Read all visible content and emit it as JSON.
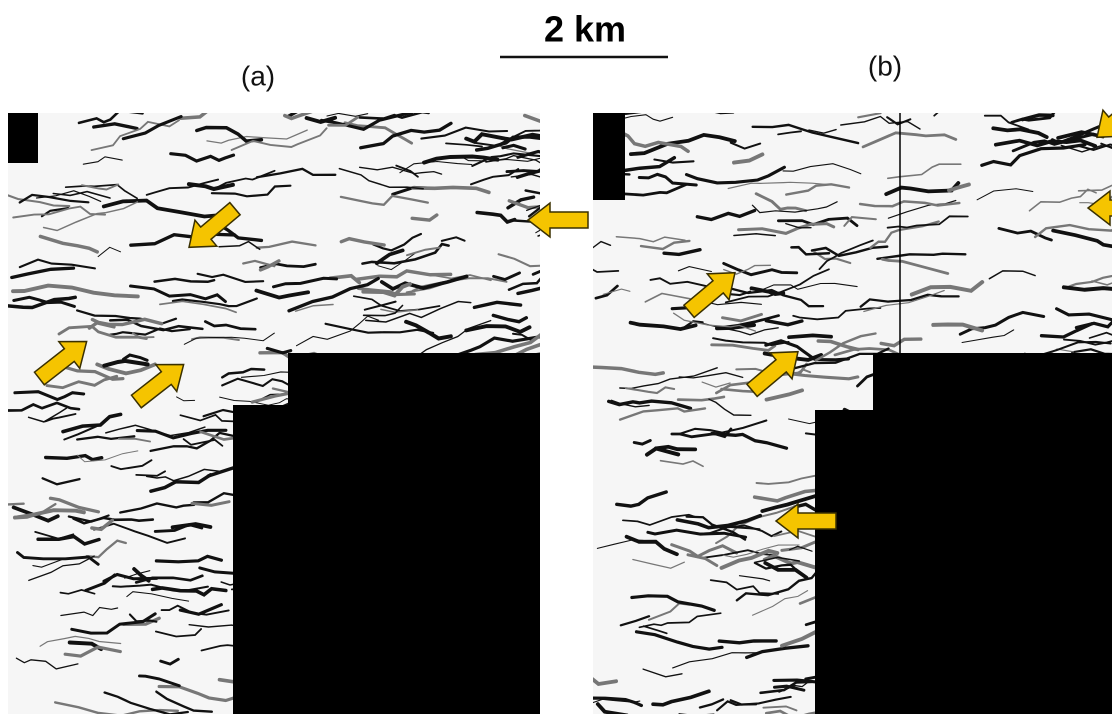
{
  "scale_bar": {
    "label": "2 km"
  },
  "panels": [
    {
      "label": "(a)"
    },
    {
      "label": "(b)"
    }
  ]
}
